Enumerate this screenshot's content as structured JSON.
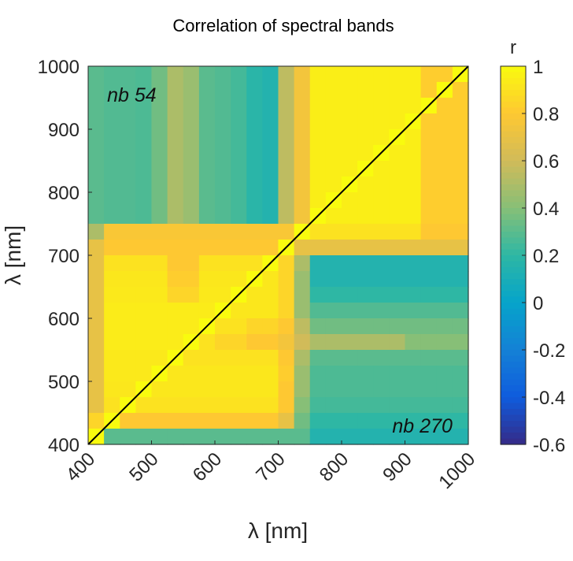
{
  "chart_data": {
    "type": "heatmap",
    "title": "Correlation of spectral bands",
    "xlabel": "λ [nm]",
    "ylabel": "λ [nm]",
    "xlim": [
      400,
      1000
    ],
    "ylim": [
      400,
      1000
    ],
    "xticks": [
      "400",
      "500",
      "600",
      "700",
      "800",
      "900",
      "1000"
    ],
    "yticks": [
      "400",
      "500",
      "600",
      "700",
      "800",
      "900",
      "1000"
    ],
    "colorbar": {
      "label": "r",
      "range": [
        -0.6,
        1
      ],
      "ticks": [
        "1",
        "0.8",
        "0.6",
        "0.4",
        "0.2",
        "0",
        "-0.2",
        "-0.4",
        "-0.6"
      ],
      "colormap": "parula",
      "stops": [
        "#352a87",
        "#0f5cdd",
        "#1481d6",
        "#06a4ca",
        "#2eb7a4",
        "#87bf77",
        "#d1bb59",
        "#fec832",
        "#f9fb0e"
      ]
    },
    "annotations": [
      {
        "text": "nb 54",
        "x": 430,
        "y": 955
      },
      {
        "text": "nb 270",
        "x": 975,
        "y": 430
      }
    ],
    "diagonal_line": {
      "from": [
        400,
        400
      ],
      "to": [
        1000,
        1000
      ],
      "color": "#000000"
    },
    "x": [
      412.5,
      437.5,
      462.5,
      487.5,
      512.5,
      537.5,
      562.5,
      587.5,
      612.5,
      637.5,
      662.5,
      687.5,
      712.5,
      737.5,
      762.5,
      787.5,
      812.5,
      837.5,
      862.5,
      887.5,
      912.5,
      937.5,
      962.5,
      987.5
    ],
    "y": [
      987.5,
      962.5,
      937.5,
      912.5,
      887.5,
      862.5,
      837.5,
      812.5,
      787.5,
      762.5,
      737.5,
      712.5,
      687.5,
      662.5,
      637.5,
      612.5,
      587.5,
      562.5,
      537.5,
      512.5,
      487.5,
      462.5,
      437.5,
      412.5
    ],
    "z": [
      [
        0.3,
        0.28,
        0.28,
        0.27,
        0.35,
        0.5,
        0.45,
        0.3,
        0.28,
        0.25,
        0.18,
        0.15,
        0.55,
        0.75,
        0.95,
        0.95,
        0.95,
        0.95,
        0.95,
        0.95,
        0.95,
        0.82,
        0.82,
        1
      ],
      [
        0.3,
        0.28,
        0.28,
        0.27,
        0.35,
        0.5,
        0.45,
        0.3,
        0.28,
        0.25,
        0.18,
        0.15,
        0.55,
        0.75,
        0.95,
        0.95,
        0.95,
        0.95,
        0.95,
        0.95,
        0.95,
        0.82,
        1,
        0.82
      ],
      [
        0.3,
        0.28,
        0.28,
        0.27,
        0.35,
        0.5,
        0.45,
        0.3,
        0.28,
        0.25,
        0.18,
        0.15,
        0.55,
        0.75,
        0.95,
        0.95,
        0.95,
        0.95,
        0.95,
        0.95,
        0.95,
        1,
        0.82,
        0.82
      ],
      [
        0.3,
        0.28,
        0.28,
        0.27,
        0.35,
        0.5,
        0.45,
        0.3,
        0.28,
        0.25,
        0.18,
        0.15,
        0.55,
        0.75,
        0.95,
        0.95,
        0.95,
        0.95,
        0.95,
        0.95,
        1,
        0.82,
        0.82,
        0.82
      ],
      [
        0.3,
        0.28,
        0.28,
        0.27,
        0.35,
        0.5,
        0.45,
        0.3,
        0.28,
        0.25,
        0.18,
        0.15,
        0.55,
        0.75,
        0.95,
        0.95,
        0.95,
        0.95,
        0.95,
        1,
        0.95,
        0.82,
        0.82,
        0.82
      ],
      [
        0.3,
        0.28,
        0.28,
        0.27,
        0.35,
        0.5,
        0.45,
        0.3,
        0.28,
        0.25,
        0.18,
        0.15,
        0.55,
        0.75,
        0.95,
        0.95,
        0.95,
        0.95,
        1,
        0.95,
        0.95,
        0.82,
        0.82,
        0.82
      ],
      [
        0.3,
        0.28,
        0.28,
        0.27,
        0.35,
        0.5,
        0.45,
        0.3,
        0.28,
        0.25,
        0.18,
        0.15,
        0.55,
        0.75,
        0.95,
        0.95,
        0.95,
        1,
        0.95,
        0.95,
        0.95,
        0.82,
        0.82,
        0.82
      ],
      [
        0.3,
        0.28,
        0.28,
        0.27,
        0.35,
        0.5,
        0.45,
        0.3,
        0.28,
        0.25,
        0.18,
        0.15,
        0.55,
        0.75,
        0.95,
        0.95,
        1,
        0.95,
        0.95,
        0.95,
        0.95,
        0.82,
        0.82,
        0.82
      ],
      [
        0.3,
        0.28,
        0.28,
        0.27,
        0.35,
        0.5,
        0.45,
        0.3,
        0.28,
        0.25,
        0.18,
        0.15,
        0.55,
        0.75,
        0.95,
        1,
        0.95,
        0.95,
        0.95,
        0.95,
        0.95,
        0.82,
        0.82,
        0.82
      ],
      [
        0.3,
        0.28,
        0.28,
        0.27,
        0.35,
        0.5,
        0.45,
        0.3,
        0.28,
        0.25,
        0.18,
        0.15,
        0.55,
        0.75,
        1,
        0.95,
        0.95,
        0.95,
        0.95,
        0.95,
        0.95,
        0.82,
        0.82,
        0.82
      ],
      [
        0.5,
        0.78,
        0.78,
        0.78,
        0.78,
        0.78,
        0.78,
        0.78,
        0.78,
        0.78,
        0.78,
        0.78,
        0.78,
        1,
        0.9,
        0.9,
        0.9,
        0.9,
        0.9,
        0.9,
        0.9,
        0.8,
        0.8,
        0.8
      ],
      [
        0.7,
        0.8,
        0.8,
        0.8,
        0.8,
        0.8,
        0.8,
        0.8,
        0.8,
        0.8,
        0.8,
        0.8,
        1,
        0.7,
        0.7,
        0.7,
        0.7,
        0.7,
        0.7,
        0.7,
        0.7,
        0.7,
        0.7,
        0.7
      ],
      [
        0.7,
        0.9,
        0.9,
        0.9,
        0.9,
        0.8,
        0.8,
        0.9,
        0.9,
        0.9,
        0.9,
        1,
        0.85,
        0.5,
        0.15,
        0.15,
        0.15,
        0.15,
        0.15,
        0.15,
        0.15,
        0.15,
        0.15,
        0.15
      ],
      [
        0.7,
        0.92,
        0.92,
        0.92,
        0.92,
        0.82,
        0.82,
        0.92,
        0.92,
        0.92,
        1,
        0.92,
        0.85,
        0.45,
        0.15,
        0.15,
        0.15,
        0.15,
        0.15,
        0.15,
        0.15,
        0.15,
        0.15,
        0.15
      ],
      [
        0.7,
        0.93,
        0.93,
        0.93,
        0.93,
        0.85,
        0.85,
        0.93,
        0.93,
        1,
        0.92,
        0.92,
        0.85,
        0.45,
        0.2,
        0.2,
        0.2,
        0.2,
        0.2,
        0.2,
        0.2,
        0.2,
        0.2,
        0.2
      ],
      [
        0.7,
        0.94,
        0.94,
        0.94,
        0.94,
        0.94,
        0.94,
        0.94,
        1,
        0.92,
        0.92,
        0.92,
        0.85,
        0.45,
        0.28,
        0.28,
        0.28,
        0.28,
        0.28,
        0.28,
        0.28,
        0.28,
        0.28,
        0.28
      ],
      [
        0.7,
        0.94,
        0.94,
        0.94,
        0.94,
        0.94,
        0.94,
        1,
        0.9,
        0.9,
        0.85,
        0.85,
        0.8,
        0.55,
        0.35,
        0.35,
        0.35,
        0.35,
        0.35,
        0.35,
        0.35,
        0.35,
        0.35,
        0.35
      ],
      [
        0.7,
        0.94,
        0.94,
        0.94,
        0.94,
        0.94,
        1,
        0.9,
        0.85,
        0.85,
        0.8,
        0.8,
        0.75,
        0.6,
        0.5,
        0.5,
        0.5,
        0.5,
        0.5,
        0.5,
        0.4,
        0.4,
        0.4,
        0.4
      ],
      [
        0.7,
        0.93,
        0.93,
        0.93,
        0.93,
        1,
        0.9,
        0.9,
        0.9,
        0.9,
        0.9,
        0.9,
        0.8,
        0.5,
        0.3,
        0.3,
        0.3,
        0.3,
        0.3,
        0.3,
        0.3,
        0.3,
        0.3,
        0.3
      ],
      [
        0.7,
        0.93,
        0.93,
        0.93,
        1,
        0.92,
        0.92,
        0.92,
        0.92,
        0.92,
        0.92,
        0.92,
        0.82,
        0.45,
        0.27,
        0.27,
        0.27,
        0.27,
        0.27,
        0.27,
        0.27,
        0.27,
        0.27,
        0.27
      ],
      [
        0.7,
        0.92,
        0.92,
        1,
        0.92,
        0.92,
        0.92,
        0.92,
        0.92,
        0.92,
        0.92,
        0.92,
        0.8,
        0.45,
        0.27,
        0.27,
        0.27,
        0.27,
        0.27,
        0.27,
        0.27,
        0.27,
        0.27,
        0.27
      ],
      [
        0.7,
        0.9,
        1,
        0.9,
        0.9,
        0.9,
        0.9,
        0.9,
        0.9,
        0.9,
        0.9,
        0.9,
        0.8,
        0.4,
        0.25,
        0.25,
        0.25,
        0.25,
        0.25,
        0.25,
        0.25,
        0.25,
        0.25,
        0.25
      ],
      [
        0.85,
        1,
        0.8,
        0.8,
        0.8,
        0.8,
        0.8,
        0.8,
        0.8,
        0.8,
        0.8,
        0.8,
        0.7,
        0.35,
        0.2,
        0.2,
        0.2,
        0.2,
        0.2,
        0.2,
        0.2,
        0.2,
        0.2,
        0.2
      ],
      [
        1,
        0.3,
        0.3,
        0.3,
        0.3,
        0.3,
        0.3,
        0.3,
        0.3,
        0.3,
        0.3,
        0.3,
        0.3,
        0.3,
        0.15,
        0.15,
        0.15,
        0.15,
        0.15,
        0.15,
        0.15,
        0.15,
        0.15,
        0.15
      ]
    ]
  }
}
